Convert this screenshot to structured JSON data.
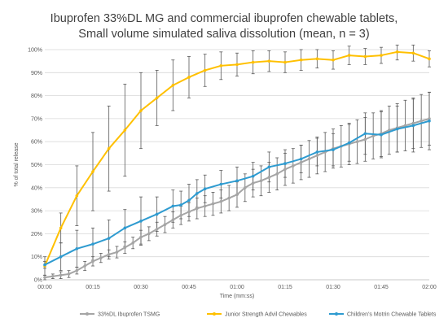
{
  "chart_data": {
    "type": "line",
    "title": "Ibuprofen 33%DL MG and commercial ibuprofen chewable tablets, Small volume simulated saliva dissolution (mean, n = 3)",
    "title_lines": [
      "Ibuprofen 33%DL MG and commercial ibuprofen chewable tablets,",
      "Small volume simulated saliva dissolution (mean, n = 3)"
    ],
    "xlabel": "Time (mm:ss)",
    "ylabel": "% of total release",
    "x_seconds": [
      0,
      5,
      10,
      15,
      20,
      25,
      30,
      35,
      40,
      45,
      50,
      55,
      60,
      65,
      70,
      75,
      80,
      85,
      90,
      95,
      100,
      105,
      110,
      115,
      120
    ],
    "xlim": [
      0,
      120
    ],
    "ylim": [
      0,
      100
    ],
    "x_ticks": [
      0,
      15,
      30,
      45,
      60,
      75,
      90,
      105,
      120
    ],
    "x_tick_labels": [
      "00:00",
      "00:15",
      "00:30",
      "00:45",
      "01:00",
      "01:15",
      "01:30",
      "01:45",
      "02:00"
    ],
    "y_ticks": [
      0,
      10,
      20,
      30,
      40,
      50,
      60,
      70,
      80,
      90,
      100
    ],
    "y_tick_labels": [
      "0%",
      "10%",
      "20%",
      "30%",
      "40%",
      "50%",
      "60%",
      "70%",
      "80%",
      "90%",
      "100%"
    ],
    "y_gridlines": true,
    "legend_position": "bottom",
    "series": [
      {
        "name": "33%DL Ibuprofen TSMG",
        "color": "#a5a5a5",
        "x": [
          0,
          2.5,
          5,
          7.5,
          10,
          12.5,
          15,
          17.5,
          20,
          22.5,
          25,
          27.5,
          30,
          32.5,
          35,
          37.5,
          40,
          42.5,
          45,
          47.5,
          50,
          52.5,
          55,
          57.5,
          60,
          62.5,
          65,
          67.5,
          70,
          72.5,
          75,
          77.5,
          80,
          82.5,
          85,
          87.5,
          90,
          92.5,
          95,
          97.5,
          100,
          102.5,
          105,
          107.5,
          110,
          112.5,
          115,
          117.5,
          120
        ],
        "values": [
          1,
          1.5,
          2,
          2.5,
          4,
          6,
          8,
          9.5,
          11,
          12,
          14,
          16,
          18.5,
          20,
          22,
          24,
          26,
          28,
          29.5,
          31,
          32,
          33,
          34,
          35.5,
          37,
          40,
          42,
          43,
          44.5,
          46,
          48,
          49.5,
          51,
          52.5,
          54,
          55.5,
          57,
          58,
          59,
          60,
          61,
          62.5,
          63.5,
          65,
          66,
          67,
          68,
          69,
          70
        ],
        "errors": [
          1,
          1,
          1.5,
          1.5,
          1.5,
          2,
          2,
          2,
          2,
          2.5,
          2.5,
          2.5,
          3,
          3,
          3,
          3.5,
          3.5,
          4,
          4,
          4.5,
          4.5,
          5,
          5,
          5.5,
          5.5,
          6,
          6,
          6.5,
          6.5,
          7,
          7,
          7.5,
          7.5,
          8,
          8,
          8.5,
          8.5,
          9,
          9,
          9.5,
          9.5,
          10,
          10,
          10.5,
          10.5,
          11,
          11,
          11.5,
          11.5
        ]
      },
      {
        "name": "Junior Strength Advil Chewables",
        "color": "#ffc000",
        "x": [
          0,
          5,
          10,
          15,
          20,
          25,
          30,
          35,
          40,
          45,
          50,
          55,
          60,
          65,
          70,
          75,
          80,
          85,
          90,
          95,
          100,
          105,
          110,
          115,
          120
        ],
        "values": [
          6,
          22.5,
          36.5,
          47,
          57,
          65,
          73.5,
          79,
          84.5,
          88,
          91,
          93,
          93.5,
          94.5,
          95,
          94.5,
          95.5,
          96,
          95.5,
          97.5,
          97,
          97.5,
          99,
          98.5,
          96
        ],
        "errors": [
          4,
          6.5,
          13,
          17,
          18.5,
          20,
          16.5,
          12,
          11,
          9,
          7,
          6,
          5,
          5,
          4.5,
          4.5,
          4.5,
          4,
          4,
          4,
          3.5,
          3.5,
          3.5,
          3.5,
          3.5
        ]
      },
      {
        "name": "Children's Motrin Chewable Tablets",
        "color": "#2e9bd0",
        "x": [
          0,
          5,
          10,
          15,
          20,
          25,
          30,
          35,
          40,
          42.5,
          45,
          47.5,
          50,
          55,
          60,
          65,
          70,
          75,
          80,
          85,
          90,
          95,
          100,
          105,
          110,
          115,
          120
        ],
        "values": [
          6.5,
          10,
          13.5,
          15.5,
          18,
          22.5,
          25.5,
          28.5,
          32,
          32.5,
          34.5,
          37.5,
          39.5,
          41.5,
          43,
          45,
          49,
          50.5,
          52.5,
          55.5,
          56.5,
          59.5,
          63.5,
          63,
          65.5,
          67,
          69
        ],
        "errors": [
          1.5,
          6,
          8,
          7,
          8,
          8,
          10.5,
          7.5,
          7,
          6,
          7,
          6,
          6,
          6,
          6,
          6,
          6.5,
          6,
          6,
          6,
          7,
          8,
          9,
          10,
          10,
          11.5,
          12.5
        ]
      }
    ]
  }
}
